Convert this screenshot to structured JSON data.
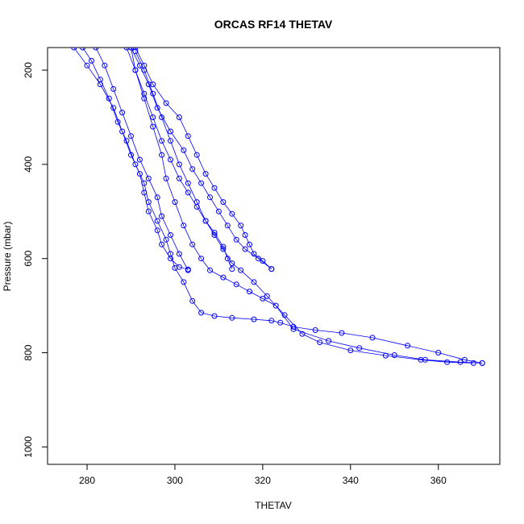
{
  "chart_data": {
    "type": "scatter",
    "title": "ORCAS RF14 THETAV",
    "xlabel": "THETAV",
    "ylabel": "Pressure (mbar)",
    "xlim": [
      271,
      374
    ],
    "ylim": [
      1037,
      152
    ],
    "y_reversed": true,
    "xticks": [
      280,
      300,
      320,
      340,
      360
    ],
    "yticks": [
      200,
      400,
      600,
      800,
      1000
    ],
    "grid": false,
    "color": "#0000ff",
    "marker": "open-circle",
    "series": [
      {
        "points": [
          [
            290,
            152
          ],
          [
            291,
            200
          ],
          [
            293,
            260
          ],
          [
            295,
            320
          ],
          [
            297,
            380
          ],
          [
            298,
            430
          ],
          [
            300,
            480
          ],
          [
            302,
            530
          ],
          [
            304,
            570
          ],
          [
            306,
            600
          ],
          [
            308,
            625
          ],
          [
            311,
            640
          ],
          [
            314,
            655
          ],
          [
            317,
            670
          ],
          [
            320,
            685
          ],
          [
            323,
            700
          ],
          [
            327,
            750
          ],
          [
            335,
            775
          ],
          [
            342,
            790
          ],
          [
            350,
            805
          ],
          [
            357,
            815
          ],
          [
            365,
            820
          ],
          [
            370,
            822
          ]
        ]
      },
      {
        "points": [
          [
            277,
            152
          ],
          [
            280,
            190
          ],
          [
            283,
            230
          ],
          [
            286,
            280
          ],
          [
            288,
            330
          ],
          [
            290,
            380
          ],
          [
            292,
            420
          ],
          [
            293,
            460
          ],
          [
            294,
            500
          ],
          [
            296,
            540
          ],
          [
            297,
            570
          ],
          [
            299,
            600
          ],
          [
            301,
            618
          ],
          [
            303,
            623
          ]
        ]
      },
      {
        "points": [
          [
            279,
            152
          ],
          [
            281,
            180
          ],
          [
            283,
            220
          ],
          [
            285,
            260
          ],
          [
            287,
            310
          ],
          [
            289,
            350
          ],
          [
            291,
            400
          ],
          [
            293,
            440
          ],
          [
            294,
            480
          ],
          [
            296,
            520
          ],
          [
            298,
            560
          ],
          [
            299,
            590
          ],
          [
            300,
            620
          ],
          [
            302,
            650
          ],
          [
            304,
            690
          ],
          [
            306,
            715
          ],
          [
            309,
            722
          ],
          [
            313,
            726
          ],
          [
            318,
            729
          ],
          [
            322,
            732
          ],
          [
            324,
            736
          ],
          [
            327,
            745
          ],
          [
            332,
            752
          ],
          [
            338,
            758
          ],
          [
            345,
            768
          ],
          [
            353,
            785
          ],
          [
            360,
            800
          ],
          [
            366,
            815
          ],
          [
            370,
            822
          ]
        ]
      },
      {
        "points": [
          [
            282,
            152
          ],
          [
            284,
            190
          ],
          [
            286,
            240
          ],
          [
            288,
            290
          ],
          [
            290,
            340
          ],
          [
            292,
            390
          ],
          [
            294,
            430
          ],
          [
            296,
            470
          ],
          [
            297,
            510
          ],
          [
            299,
            550
          ],
          [
            301,
            590
          ],
          [
            303,
            625
          ]
        ]
      },
      {
        "points": [
          [
            291,
            160
          ],
          [
            293,
            200
          ],
          [
            295,
            250
          ],
          [
            297,
            300
          ],
          [
            299,
            350
          ],
          [
            301,
            400
          ],
          [
            303,
            440
          ],
          [
            305,
            480
          ],
          [
            307,
            520
          ],
          [
            309,
            550
          ],
          [
            311,
            580
          ],
          [
            313,
            610
          ],
          [
            315,
            625
          ],
          [
            318,
            650
          ],
          [
            321,
            680
          ],
          [
            325,
            720
          ],
          [
            329,
            760
          ],
          [
            333,
            778
          ],
          [
            340,
            795
          ],
          [
            348,
            806
          ],
          [
            356,
            815
          ],
          [
            362,
            820
          ],
          [
            368,
            822
          ]
        ]
      },
      {
        "points": [
          [
            290,
            152
          ],
          [
            292,
            190
          ],
          [
            294,
            230
          ],
          [
            296,
            280
          ],
          [
            299,
            330
          ],
          [
            302,
            370
          ],
          [
            304,
            410
          ],
          [
            306,
            440
          ],
          [
            308,
            470
          ],
          [
            310,
            500
          ],
          [
            312,
            530
          ],
          [
            314,
            560
          ],
          [
            316,
            580
          ],
          [
            319,
            600
          ],
          [
            322,
            622
          ]
        ]
      },
      {
        "points": [
          [
            289,
            152
          ],
          [
            291,
            200
          ],
          [
            293,
            250
          ],
          [
            295,
            300
          ],
          [
            297,
            350
          ],
          [
            299,
            390
          ],
          [
            301,
            430
          ],
          [
            303,
            460
          ],
          [
            305,
            490
          ],
          [
            307,
            520
          ],
          [
            309,
            545
          ],
          [
            311,
            575
          ],
          [
            312,
            600
          ],
          [
            313,
            622
          ]
        ]
      },
      {
        "points": [
          [
            291,
            152
          ],
          [
            293,
            190
          ],
          [
            295,
            230
          ],
          [
            298,
            270
          ],
          [
            301,
            300
          ],
          [
            303,
            340
          ],
          [
            305,
            380
          ],
          [
            307,
            420
          ],
          [
            309,
            450
          ],
          [
            311,
            480
          ],
          [
            313,
            505
          ],
          [
            315,
            530
          ],
          [
            316,
            550
          ],
          [
            317,
            570
          ],
          [
            318,
            590
          ],
          [
            320,
            605
          ],
          [
            322,
            622
          ]
        ]
      }
    ]
  }
}
